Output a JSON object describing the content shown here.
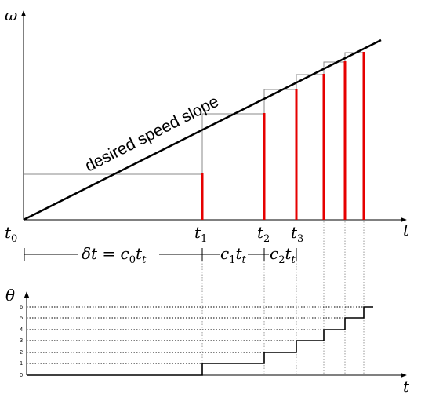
{
  "top_plot": {
    "y_axis_label": "ω",
    "x_axis_label": "t",
    "slope_label": "desired speed slope",
    "time_labels": [
      {
        "base": "t",
        "sub": "0"
      },
      {
        "base": "t",
        "sub": "1"
      },
      {
        "base": "t",
        "sub": "2"
      },
      {
        "base": "t",
        "sub": "3"
      }
    ],
    "interval_labels": {
      "first_prefix": "δt = c",
      "first_sub0": "0",
      "first_t": "t",
      "first_subt": "t",
      "second_c": "c",
      "second_sub": "1",
      "second_t": "t",
      "second_subt": "t",
      "third_c": "c",
      "third_sub": "2",
      "third_t": "t",
      "third_subt": "t"
    }
  },
  "bottom_plot": {
    "y_axis_label": "θ",
    "x_axis_label": "t",
    "y_ticks": [
      "0",
      "1",
      "2",
      "3",
      "4",
      "5",
      "6"
    ]
  },
  "colors": {
    "pulse": "#e60000",
    "axis": "#000000",
    "guide": "#888888"
  }
}
